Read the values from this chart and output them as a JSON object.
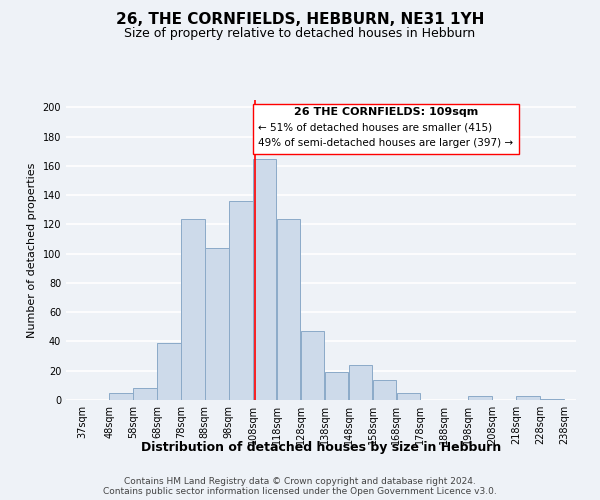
{
  "title": "26, THE CORNFIELDS, HEBBURN, NE31 1YH",
  "subtitle": "Size of property relative to detached houses in Hebburn",
  "xlabel": "Distribution of detached houses by size in Hebburn",
  "ylabel": "Number of detached properties",
  "bar_left_edges": [
    37,
    48,
    58,
    68,
    78,
    88,
    98,
    108,
    118,
    128,
    138,
    148,
    158,
    168,
    178,
    188,
    198,
    208,
    218,
    228
  ],
  "bar_widths": [
    11,
    10,
    10,
    10,
    10,
    10,
    10,
    10,
    10,
    10,
    10,
    10,
    10,
    10,
    10,
    10,
    10,
    10,
    10,
    10
  ],
  "bar_heights": [
    0,
    5,
    8,
    39,
    124,
    104,
    136,
    165,
    124,
    47,
    19,
    24,
    14,
    5,
    0,
    0,
    3,
    0,
    3,
    1
  ],
  "bar_color": "#cddaea",
  "bar_edgecolor": "#8baac8",
  "vline_x": 109,
  "vline_color": "red",
  "annotation_line1": "26 THE CORNFIELDS: 109sqm",
  "annotation_line2": "← 51% of detached houses are smaller (415)",
  "annotation_line3": "49% of semi-detached houses are larger (397) →",
  "ylim": [
    0,
    205
  ],
  "xlim": [
    30,
    243
  ],
  "yticks": [
    0,
    20,
    40,
    60,
    80,
    100,
    120,
    140,
    160,
    180,
    200
  ],
  "xtick_labels": [
    "37sqm",
    "48sqm",
    "58sqm",
    "68sqm",
    "78sqm",
    "88sqm",
    "98sqm",
    "108sqm",
    "118sqm",
    "128sqm",
    "138sqm",
    "148sqm",
    "158sqm",
    "168sqm",
    "178sqm",
    "188sqm",
    "198sqm",
    "208sqm",
    "218sqm",
    "228sqm",
    "238sqm"
  ],
  "xtick_positions": [
    37,
    48,
    58,
    68,
    78,
    88,
    98,
    108,
    118,
    128,
    138,
    148,
    158,
    168,
    178,
    188,
    198,
    208,
    218,
    228,
    238
  ],
  "footer_line1": "Contains HM Land Registry data © Crown copyright and database right 2024.",
  "footer_line2": "Contains public sector information licensed under the Open Government Licence v3.0.",
  "background_color": "#eef2f7",
  "grid_color": "#ffffff",
  "title_fontsize": 11,
  "subtitle_fontsize": 9,
  "xlabel_fontsize": 9,
  "ylabel_fontsize": 8,
  "tick_fontsize": 7,
  "annotation_fontsize": 8,
  "footer_fontsize": 6.5
}
